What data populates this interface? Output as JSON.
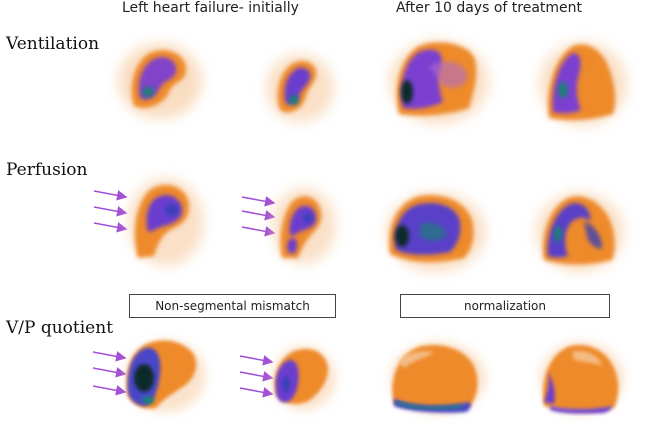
{
  "headers": {
    "left": "Left heart failure- initially",
    "right": "After 10 days of treatment"
  },
  "rows": {
    "ventilation": "Ventilation",
    "perfusion": "Perfusion",
    "vp": "V/P quotient"
  },
  "labels": {
    "left": "Non-segmental mismatch",
    "right": "normalization"
  },
  "colors": {
    "halo": "#f2a65a",
    "warm": "#ee8a2c",
    "violet": "#7b3fd1",
    "blue": "#4a46c8",
    "teal": "#1f7f7a",
    "dark": "#102a2a",
    "arrow": "#a24fd6"
  }
}
